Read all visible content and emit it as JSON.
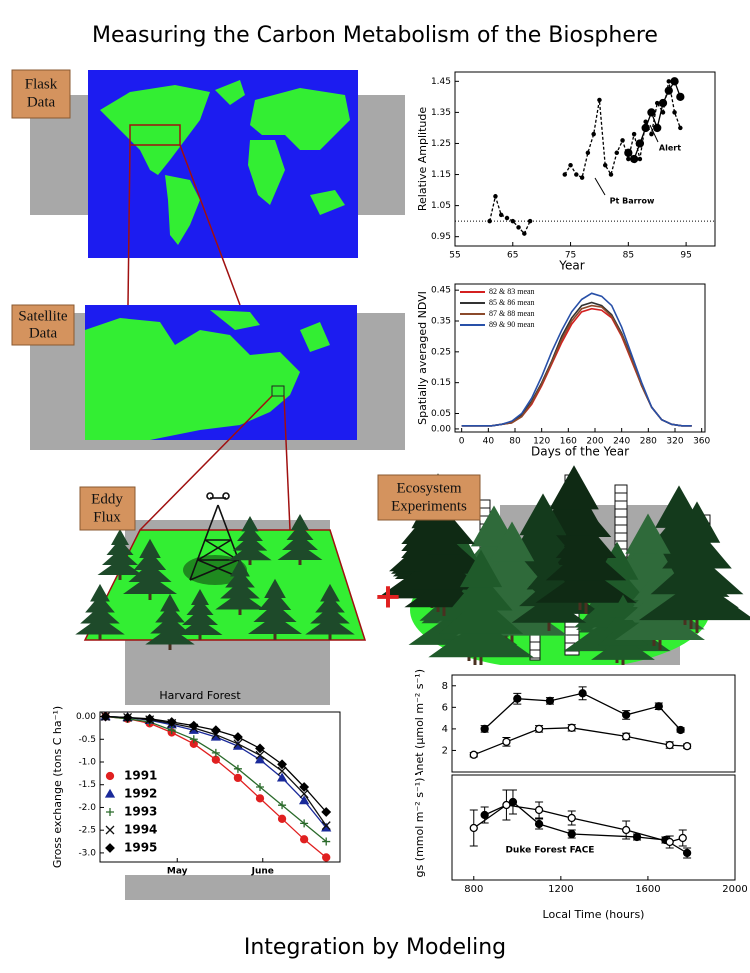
{
  "title": "Measuring the Carbon Metabolism of the Biosphere",
  "footer": "Integration by Modeling",
  "labels": {
    "flask": [
      "Flask",
      "Data"
    ],
    "satellite": [
      "Satellite",
      "Data"
    ],
    "eddy": [
      "Eddy",
      "Flux"
    ],
    "ecosystem": [
      "Ecosystem",
      "Experiments"
    ]
  },
  "plus": "+",
  "chart_data": [
    {
      "type": "line",
      "x_label": "Year",
      "y_label": "Relative Amplitude",
      "xlim": [
        55,
        100
      ],
      "ylim": [
        0.92,
        1.48
      ],
      "xticks": [
        55,
        65,
        75,
        85,
        95
      ],
      "yticks": [
        0.95,
        1.05,
        1.15,
        1.25,
        1.35,
        1.45
      ],
      "reference_line": 1,
      "series": [
        {
          "name": "Pt Barrow",
          "color": "#000",
          "dash": true,
          "marker": "dot",
          "x": [
            61,
            62,
            63,
            64,
            65,
            66,
            67,
            68,
            71,
            74,
            75,
            76,
            77,
            78,
            79,
            80,
            81,
            82,
            83,
            84,
            85,
            86,
            87,
            88,
            89,
            90,
            91,
            92,
            93,
            94
          ],
          "values": [
            1.0,
            1.08,
            1.02,
            1.01,
            1.0,
            0.98,
            0.96,
            1.0,
            null,
            1.15,
            1.18,
            1.15,
            1.14,
            1.22,
            1.28,
            1.39,
            1.18,
            1.15,
            1.22,
            1.26,
            1.2,
            1.28,
            1.2,
            1.32,
            1.28,
            1.38,
            1.35,
            1.45,
            1.35,
            1.3
          ]
        },
        {
          "name": "Alert",
          "color": "#000",
          "dash": false,
          "marker": "circle",
          "x": [
            85,
            86,
            87,
            88,
            89,
            90,
            91,
            92,
            93,
            94
          ],
          "values": [
            1.22,
            1.2,
            1.25,
            1.3,
            1.35,
            1.3,
            1.38,
            1.42,
            1.45,
            1.4
          ]
        }
      ]
    },
    {
      "type": "line",
      "x_label": "Days of the Year",
      "y_label": "Spatially averaged NDVI",
      "xlim": [
        -10,
        365
      ],
      "ylim": [
        -0.01,
        0.47
      ],
      "xticks": [
        0,
        40,
        80,
        120,
        160,
        200,
        240,
        280,
        320,
        360
      ],
      "yticks": [
        {
          "value": 0,
          "label": "0.00"
        },
        0.05,
        0.15,
        0.25,
        0.35,
        0.45
      ],
      "legend": "upper left",
      "x": [
        0,
        15,
        30,
        45,
        60,
        75,
        90,
        105,
        120,
        135,
        150,
        165,
        180,
        195,
        210,
        225,
        240,
        255,
        270,
        285,
        300,
        315,
        330,
        345
      ],
      "series": [
        {
          "name": "82 & 83 mean",
          "color": "#d42020",
          "values": [
            0.01,
            0.01,
            0.01,
            0.01,
            0.015,
            0.02,
            0.04,
            0.08,
            0.14,
            0.21,
            0.28,
            0.34,
            0.38,
            0.39,
            0.385,
            0.36,
            0.3,
            0.22,
            0.14,
            0.07,
            0.03,
            0.015,
            0.01,
            0.01
          ]
        },
        {
          "name": "85 & 86 mean",
          "color": "#333333",
          "values": [
            0.01,
            0.01,
            0.01,
            0.01,
            0.015,
            0.02,
            0.045,
            0.09,
            0.15,
            0.22,
            0.3,
            0.36,
            0.4,
            0.41,
            0.4,
            0.37,
            0.31,
            0.23,
            0.14,
            0.07,
            0.03,
            0.015,
            0.01,
            0.01
          ]
        },
        {
          "name": "87 & 88 mean",
          "color": "#8b4a2b",
          "values": [
            0.01,
            0.01,
            0.01,
            0.01,
            0.015,
            0.02,
            0.04,
            0.085,
            0.145,
            0.215,
            0.29,
            0.35,
            0.39,
            0.4,
            0.395,
            0.365,
            0.305,
            0.225,
            0.14,
            0.07,
            0.03,
            0.015,
            0.01,
            0.01
          ]
        },
        {
          "name": "89 & 90 mean",
          "color": "#2850a8",
          "values": [
            0.01,
            0.01,
            0.01,
            0.01,
            0.015,
            0.025,
            0.05,
            0.1,
            0.17,
            0.25,
            0.32,
            0.38,
            0.42,
            0.44,
            0.43,
            0.4,
            0.33,
            0.24,
            0.15,
            0.07,
            0.03,
            0.015,
            0.01,
            0.01
          ]
        }
      ]
    },
    {
      "type": "line",
      "title": "Harvard Forest",
      "y_label": "Gross exchange (tons C ha⁻¹)",
      "xlim": [
        -2,
        85
      ],
      "ylim": [
        -3.2,
        0.1
      ],
      "xticks": [
        {
          "value": 26,
          "label": "May"
        },
        {
          "value": 57,
          "label": "June"
        }
      ],
      "yticks": [
        {
          "value": 0,
          "label": "0.00"
        },
        -0.5,
        {
          "value": -1,
          "label": "-1.0"
        },
        -1.5,
        {
          "value": -2,
          "label": "-2.0"
        },
        -2.5,
        {
          "value": -3,
          "label": "-3.0"
        }
      ],
      "legend": "lower left",
      "x": [
        0,
        8,
        16,
        24,
        32,
        40,
        48,
        56,
        64,
        72,
        80
      ],
      "series": [
        {
          "name": "1991",
          "color": "#e02020",
          "marker": "circle",
          "values": [
            0,
            -0.05,
            -0.15,
            -0.35,
            -0.6,
            -0.95,
            -1.35,
            -1.8,
            -2.25,
            -2.7,
            -3.1
          ]
        },
        {
          "name": "1992",
          "color": "#1a2a9a",
          "marker": "triangle",
          "values": [
            0,
            -0.02,
            -0.08,
            -0.18,
            -0.3,
            -0.45,
            -0.65,
            -0.95,
            -1.35,
            -1.85,
            -2.45
          ]
        },
        {
          "name": "1993",
          "color": "#2a6a2a",
          "marker": "plus",
          "values": [
            0,
            -0.05,
            -0.12,
            -0.3,
            -0.5,
            -0.8,
            -1.15,
            -1.55,
            -1.95,
            -2.35,
            -2.75
          ]
        },
        {
          "name": "1994",
          "color": "#111",
          "marker": "x",
          "values": [
            0,
            -0.02,
            -0.07,
            -0.15,
            -0.25,
            -0.4,
            -0.6,
            -0.85,
            -1.2,
            -1.7,
            -2.4
          ]
        },
        {
          "name": "1995",
          "color": "#000",
          "marker": "diamond",
          "values": [
            0,
            -0.02,
            -0.05,
            -0.12,
            -0.2,
            -0.3,
            -0.45,
            -0.7,
            -1.05,
            -1.55,
            -2.1
          ]
        }
      ]
    },
    {
      "type": "line",
      "y_label": "Anet (μmol m⁻² s⁻¹)",
      "xlim": [
        700,
        2000
      ],
      "ylim": [
        0,
        9
      ],
      "yticks": [
        2,
        4,
        6,
        8
      ],
      "series": [
        {
          "color": "#000",
          "fill": "#000",
          "marker": "circle",
          "x": [
            850,
            1000,
            1150,
            1300,
            1500,
            1650,
            1750
          ],
          "values": [
            4,
            6.8,
            6.6,
            7.3,
            5.3,
            6.1,
            3.9
          ],
          "errors": [
            0.3,
            0.5,
            0.3,
            0.6,
            0.4,
            0.3,
            0.2
          ]
        },
        {
          "color": "#000",
          "fill": "#fff",
          "marker": "circle",
          "x": [
            800,
            950,
            1100,
            1250,
            1500,
            1700,
            1780
          ],
          "values": [
            1.6,
            2.8,
            4,
            4.1,
            3.3,
            2.5,
            2.4
          ],
          "errors": [
            0.2,
            0.4,
            0.3,
            0.3,
            0.3,
            0.3,
            0.2
          ]
        }
      ]
    },
    {
      "type": "line",
      "y_label": "gs (mmol m⁻² s⁻¹)",
      "x_label": "Local Time (hours)",
      "annotation": "Duke Forest FACE",
      "xlim": [
        700,
        2000
      ],
      "ylim": [
        20,
        125
      ],
      "xticks": [
        800,
        1200,
        1600,
        2000
      ],
      "series": [
        {
          "color": "#000",
          "fill": "#000",
          "marker": "circle",
          "x": [
            850,
            980,
            1100,
            1250,
            1550,
            1680,
            1780
          ],
          "values": [
            85,
            98,
            76,
            66,
            63,
            60,
            47
          ],
          "errors": [
            8,
            12,
            5,
            4,
            3,
            3,
            5
          ]
        },
        {
          "color": "#000",
          "fill": "#fff",
          "marker": "circle",
          "x": [
            800,
            950,
            1100,
            1250,
            1500,
            1700,
            1760
          ],
          "values": [
            72,
            95,
            90,
            82,
            70,
            58,
            62
          ],
          "errors": [
            18,
            15,
            8,
            7,
            9,
            6,
            8
          ]
        }
      ]
    }
  ]
}
